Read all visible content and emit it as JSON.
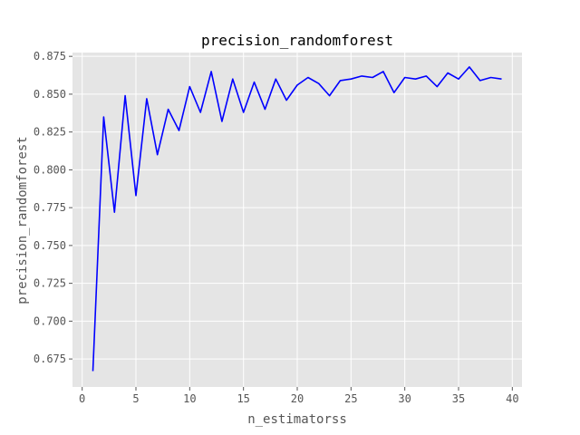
{
  "chart_data": {
    "type": "line",
    "title": "precision_randomforest",
    "xlabel": "n_estimatorss",
    "ylabel": "precision_randomforest",
    "xlim": [
      -0.9,
      40.9
    ],
    "ylim": [
      0.6565,
      0.8775
    ],
    "grid": true,
    "xticks": [
      0,
      5,
      10,
      15,
      20,
      25,
      30,
      35,
      40
    ],
    "yticks": [
      0.675,
      0.7,
      0.725,
      0.75,
      0.775,
      0.8,
      0.825,
      0.85,
      0.875
    ],
    "xtick_labels": [
      "0",
      "5",
      "10",
      "15",
      "20",
      "25",
      "30",
      "35",
      "40"
    ],
    "ytick_labels": [
      "0.675",
      "0.700",
      "0.725",
      "0.750",
      "0.775",
      "0.800",
      "0.825",
      "0.850",
      "0.875"
    ],
    "series": [
      {
        "color": "#0000ff",
        "x": [
          1,
          2,
          3,
          4,
          5,
          6,
          7,
          8,
          9,
          10,
          11,
          12,
          13,
          14,
          15,
          16,
          17,
          18,
          19,
          20,
          21,
          22,
          23,
          24,
          25,
          26,
          27,
          28,
          29,
          30,
          31,
          32,
          33,
          34,
          35,
          36,
          37,
          38,
          39
        ],
        "y": [
          0.667,
          0.835,
          0.772,
          0.849,
          0.783,
          0.847,
          0.81,
          0.84,
          0.826,
          0.855,
          0.838,
          0.865,
          0.832,
          0.86,
          0.838,
          0.858,
          0.84,
          0.86,
          0.846,
          0.856,
          0.861,
          0.857,
          0.849,
          0.859,
          0.86,
          0.862,
          0.861,
          0.865,
          0.851,
          0.861,
          0.86,
          0.862,
          0.855,
          0.864,
          0.86,
          0.868,
          0.859,
          0.861,
          0.86
        ]
      }
    ]
  }
}
